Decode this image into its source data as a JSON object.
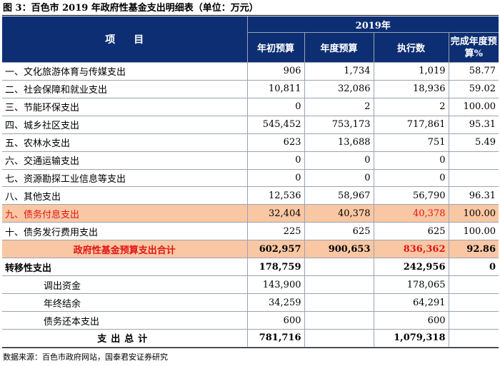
{
  "caption": "图 3：百色市 2019 年政府性基金支出明细表（单位：万元）",
  "header": {
    "item_label": "项目",
    "year_label": "2019年",
    "columns": [
      "年初预算",
      "年度预算",
      "执行数",
      "完成年度预算%"
    ]
  },
  "rows": [
    {
      "label": "一、文化旅游体育与传媒支出",
      "initial": "906",
      "annual": "1,734",
      "executed": "1,019",
      "pct": "58.77"
    },
    {
      "label": "二、社会保障和就业支出",
      "initial": "10,811",
      "annual": "32,086",
      "executed": "18,936",
      "pct": "59.02"
    },
    {
      "label": "三、节能环保支出",
      "initial": "0",
      "annual": "2",
      "executed": "2",
      "pct": "100.00"
    },
    {
      "label": "四、城乡社区支出",
      "initial": "545,452",
      "annual": "753,173",
      "executed": "717,861",
      "pct": "95.31"
    },
    {
      "label": "五、农林水支出",
      "initial": "623",
      "annual": "13,688",
      "executed": "751",
      "pct": "5.49"
    },
    {
      "label": "六、交通运输支出",
      "initial": "0",
      "annual": "0",
      "executed": "0",
      "pct": ""
    },
    {
      "label": "七、资源勘探工业信息等支出",
      "initial": "0",
      "annual": "0",
      "executed": "0",
      "pct": ""
    },
    {
      "label": "八、其他支出",
      "initial": "12,536",
      "annual": "58,967",
      "executed": "56,790",
      "pct": "96.31"
    },
    {
      "label": "九、债务付息支出",
      "initial": "32,404",
      "annual": "40,378",
      "executed": "40,378",
      "pct": "100.00"
    },
    {
      "label": "十、债务发行费用支出",
      "initial": "225",
      "annual": "625",
      "executed": "625",
      "pct": "100.00"
    }
  ],
  "total": {
    "label": "政府性基金预算支出合计",
    "initial": "602,957",
    "annual": "900,653",
    "executed": "836,362",
    "pct": "92.86"
  },
  "transfer": {
    "label": "转移性支出",
    "initial": "178,759",
    "annual": "",
    "executed": "242,956",
    "pct": "0"
  },
  "transfer_items": [
    {
      "label": "调出资金",
      "initial": "143,900",
      "annual": "",
      "executed": "178,065",
      "pct": ""
    },
    {
      "label": "年终结余",
      "initial": "34,259",
      "annual": "",
      "executed": "64,291",
      "pct": ""
    },
    {
      "label": "债务还本支出",
      "initial": "600",
      "annual": "",
      "executed": "600",
      "pct": ""
    }
  ],
  "grand_total": {
    "label": "支出总计",
    "initial": "781,716",
    "annual": "",
    "executed": "1,079,318",
    "pct": ""
  },
  "source": "数据来源：百色市政府网站，国泰君安证券研究",
  "colors": {
    "header_bg": "#0d2e72",
    "highlight_bg": "#f9c7a3",
    "highlight_text": "#e01515"
  }
}
